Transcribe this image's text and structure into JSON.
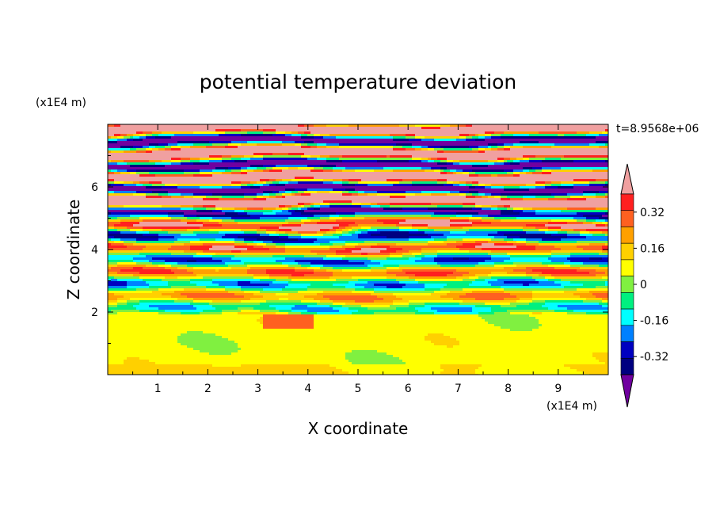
{
  "chart_data": {
    "type": "heatmap",
    "title": "potential temperature deviation",
    "time_label": "t=8.9568e+06",
    "xlabel": "X coordinate",
    "ylabel": "Z coordinate",
    "x_scale_label": "(x1E4 m)",
    "z_scale_label": "(x1E4 m)",
    "xlim": [
      0,
      10
    ],
    "zlim": [
      0,
      8
    ],
    "x_ticks": [
      "1",
      "2",
      "3",
      "4",
      "5",
      "6",
      "7",
      "8",
      "9"
    ],
    "z_ticks": [
      "2",
      "4",
      "6"
    ],
    "colorbar": {
      "levels": [
        -0.48,
        -0.4,
        -0.32,
        -0.24,
        -0.16,
        -0.08,
        0,
        0.08,
        0.16,
        0.24,
        0.32,
        0.4,
        0.48
      ],
      "tick_labels": [
        "0.32",
        "0.16",
        "0",
        "-0.16",
        "-0.32"
      ],
      "tick_values": [
        0.32,
        0.16,
        0,
        -0.16,
        -0.32
      ],
      "colors_top_to_bottom": [
        "#f0a0a0",
        "#ff2020",
        "#ff6020",
        "#ffa000",
        "#ffd000",
        "#ffff00",
        "#80f040",
        "#00f080",
        "#00ffff",
        "#0080ff",
        "#0000c0",
        "#000080",
        "#7000a0"
      ],
      "extend": "both"
    }
  }
}
